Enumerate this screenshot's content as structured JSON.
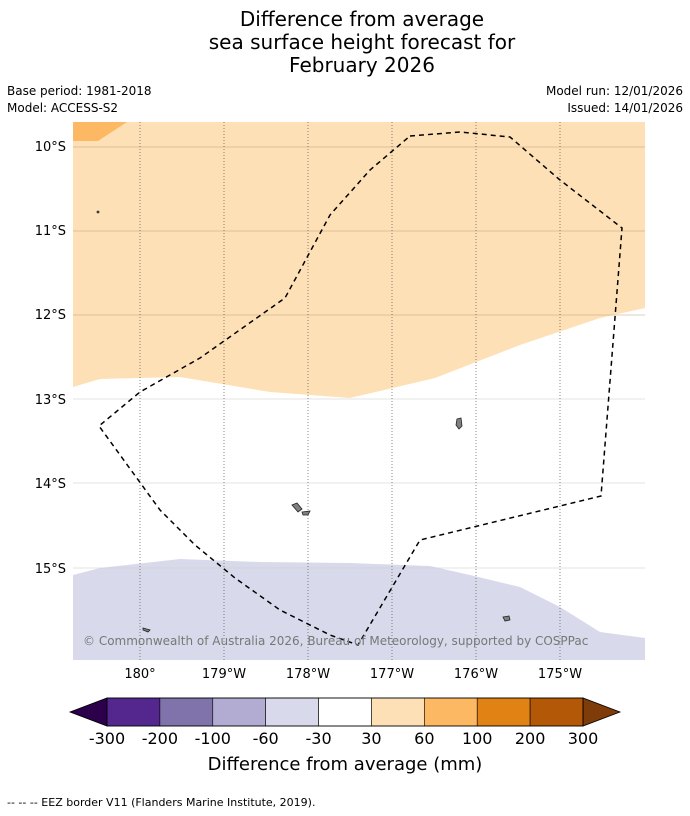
{
  "title": {
    "line1": "Difference from average",
    "line2": "sea surface height forecast for",
    "line3": "February 2026"
  },
  "meta": {
    "base_period": "Base period: 1981-2018",
    "model": "Model: ACCESS-S2",
    "model_run": "Model run: 12/01/2026",
    "issued": "Issued: 14/01/2026"
  },
  "map": {
    "lat_labels": [
      "10°S",
      "11°S",
      "12°S",
      "13°S",
      "14°S",
      "15°S"
    ],
    "lon_labels": [
      "180°",
      "179°W",
      "178°W",
      "177°W",
      "176°W",
      "175°W"
    ],
    "copyright": "© Commonwealth of Australia 2026, Bureau of Meteorology, supported by COSPPac"
  },
  "colorbar": {
    "ticks": [
      "-300",
      "-200",
      "-100",
      "-60",
      "-30",
      "30",
      "60",
      "100",
      "200",
      "300"
    ],
    "colors": [
      "#54278f",
      "#8073ac",
      "#b2abd2",
      "#d8daeb",
      "#ffffff",
      "#fee0b6",
      "#fdb863",
      "#e08214",
      "#b35806"
    ],
    "low_extend_color": "#2d004b",
    "high_extend_color": "#7f3b08",
    "label": "Difference from average (mm)"
  },
  "footer": {
    "legend_text": "-- -- -- EEZ border V11 (Flanders Marine Institute, 2019)."
  }
}
